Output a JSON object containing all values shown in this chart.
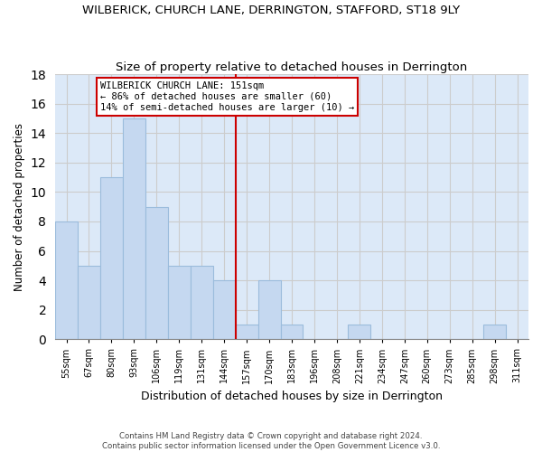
{
  "title": "WILBERICK, CHURCH LANE, DERRINGTON, STAFFORD, ST18 9LY",
  "subtitle": "Size of property relative to detached houses in Derrington",
  "xlabel": "Distribution of detached houses by size in Derrington",
  "ylabel": "Number of detached properties",
  "bin_labels": [
    "55sqm",
    "67sqm",
    "80sqm",
    "93sqm",
    "106sqm",
    "119sqm",
    "131sqm",
    "144sqm",
    "157sqm",
    "170sqm",
    "183sqm",
    "196sqm",
    "208sqm",
    "221sqm",
    "234sqm",
    "247sqm",
    "260sqm",
    "273sqm",
    "285sqm",
    "298sqm",
    "311sqm"
  ],
  "bar_values": [
    8,
    5,
    11,
    15,
    9,
    5,
    5,
    4,
    1,
    4,
    1,
    0,
    0,
    1,
    0,
    0,
    0,
    0,
    0,
    1,
    0
  ],
  "bar_color": "#c5d8f0",
  "bar_edge_color": "#9bbcdc",
  "vline_after_bar": 7,
  "annotation_text": "WILBERICK CHURCH LANE: 151sqm\n← 86% of detached houses are smaller (60)\n14% of semi-detached houses are larger (10) →",
  "annotation_box_color": "#ffffff",
  "annotation_box_edge": "#cc0000",
  "vline_color": "#cc0000",
  "grid_color": "#cccccc",
  "bg_color": "#dce9f8",
  "footer_text": "Contains HM Land Registry data © Crown copyright and database right 2024.\nContains public sector information licensed under the Open Government Licence v3.0.",
  "ylim": [
    0,
    18
  ],
  "yticks": [
    0,
    2,
    4,
    6,
    8,
    10,
    12,
    14,
    16,
    18
  ]
}
